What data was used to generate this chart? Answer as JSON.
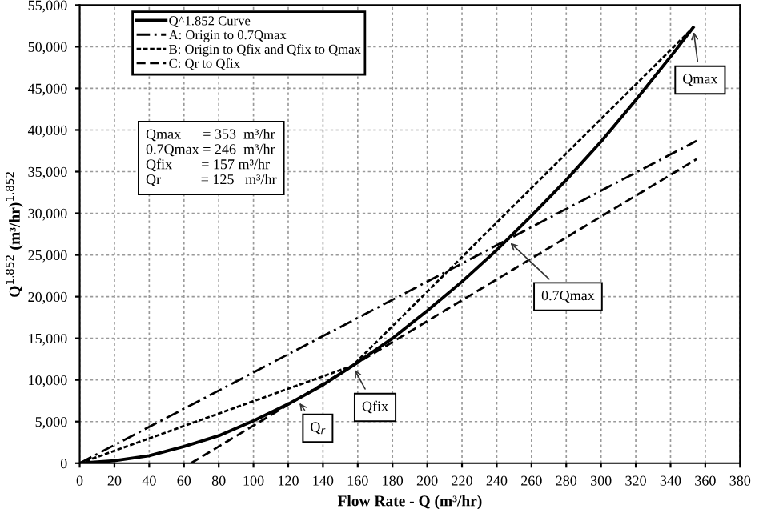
{
  "chart_data": {
    "type": "line",
    "xlabel": "Flow Rate - Q (m³/hr)",
    "ylabel": "Q$^{1.852}$ (m³/hr)$^{1.852}$",
    "xlim": [
      0,
      380
    ],
    "xticks": [
      0,
      20,
      40,
      60,
      80,
      100,
      120,
      140,
      160,
      180,
      200,
      220,
      240,
      260,
      280,
      300,
      320,
      340,
      360,
      380
    ],
    "ylim": [
      0,
      55000
    ],
    "yticks": [
      {
        "value": 0,
        "label": "0"
      },
      {
        "value": 5000,
        "label": "5,000"
      },
      {
        "value": 10000,
        "label": "10,000"
      },
      {
        "value": 15000,
        "label": "15,000"
      },
      {
        "value": 20000,
        "label": "20,000"
      },
      {
        "value": 25000,
        "label": "25,000"
      },
      {
        "value": 30000,
        "label": "30,000"
      },
      {
        "value": 35000,
        "label": "35,000"
      },
      {
        "value": 40000,
        "label": "40,000"
      },
      {
        "value": 45000,
        "label": "45,000"
      },
      {
        "value": 50000,
        "label": "50,000"
      },
      {
        "value": 55000,
        "label": "55,000"
      }
    ],
    "grid": true,
    "legend": "top left",
    "marker": "none",
    "series": [
      {
        "name": "Q^1.852 Curve",
        "color": "#000000",
        "line_style": "solid",
        "x": [
          0,
          20,
          40,
          60,
          80,
          100,
          120,
          140,
          157,
          180,
          200,
          220,
          240,
          260,
          280,
          300,
          320,
          340,
          353
        ],
        "values": [
          0,
          300,
          900,
          2000,
          3300,
          5100,
          7100,
          9400,
          11700,
          15000,
          18300,
          21800,
          25600,
          29700,
          34000,
          38600,
          43600,
          48800,
          52300
        ]
      },
      {
        "name": "A: Origin to 0.7Qmax",
        "color": "#000000",
        "line_style": "dashdot",
        "x": [
          0,
          355
        ],
        "values": [
          0,
          38700
        ]
      },
      {
        "name": "B: Origin to Qfix and Qfix to Qmax",
        "color": "#000000",
        "line_style": "dotted",
        "x": [
          0,
          157,
          353
        ],
        "values": [
          0,
          11700,
          52300
        ]
      },
      {
        "name": "C: Qr to Qfix",
        "color": "#000000",
        "line_style": "dashed",
        "x": [
          64,
          355
        ],
        "values": [
          0,
          36500
        ]
      }
    ],
    "annotations": [
      {
        "text": "Qmax",
        "x": 353,
        "y": 52300
      },
      {
        "text": "0.7Qmax",
        "x": 246,
        "y": 26800
      },
      {
        "text": "Qfix",
        "x": 157,
        "y": 11700
      },
      {
        "text": "Q$_{r}$",
        "x": 125,
        "y": 7650
      },
      "Qmax      = 353  m³/hr",
      "0.7Qmax = 246  m³/hr",
      "Qfix        = 157 m³/hr",
      "Qr           = 125   m³/hr"
    ]
  }
}
